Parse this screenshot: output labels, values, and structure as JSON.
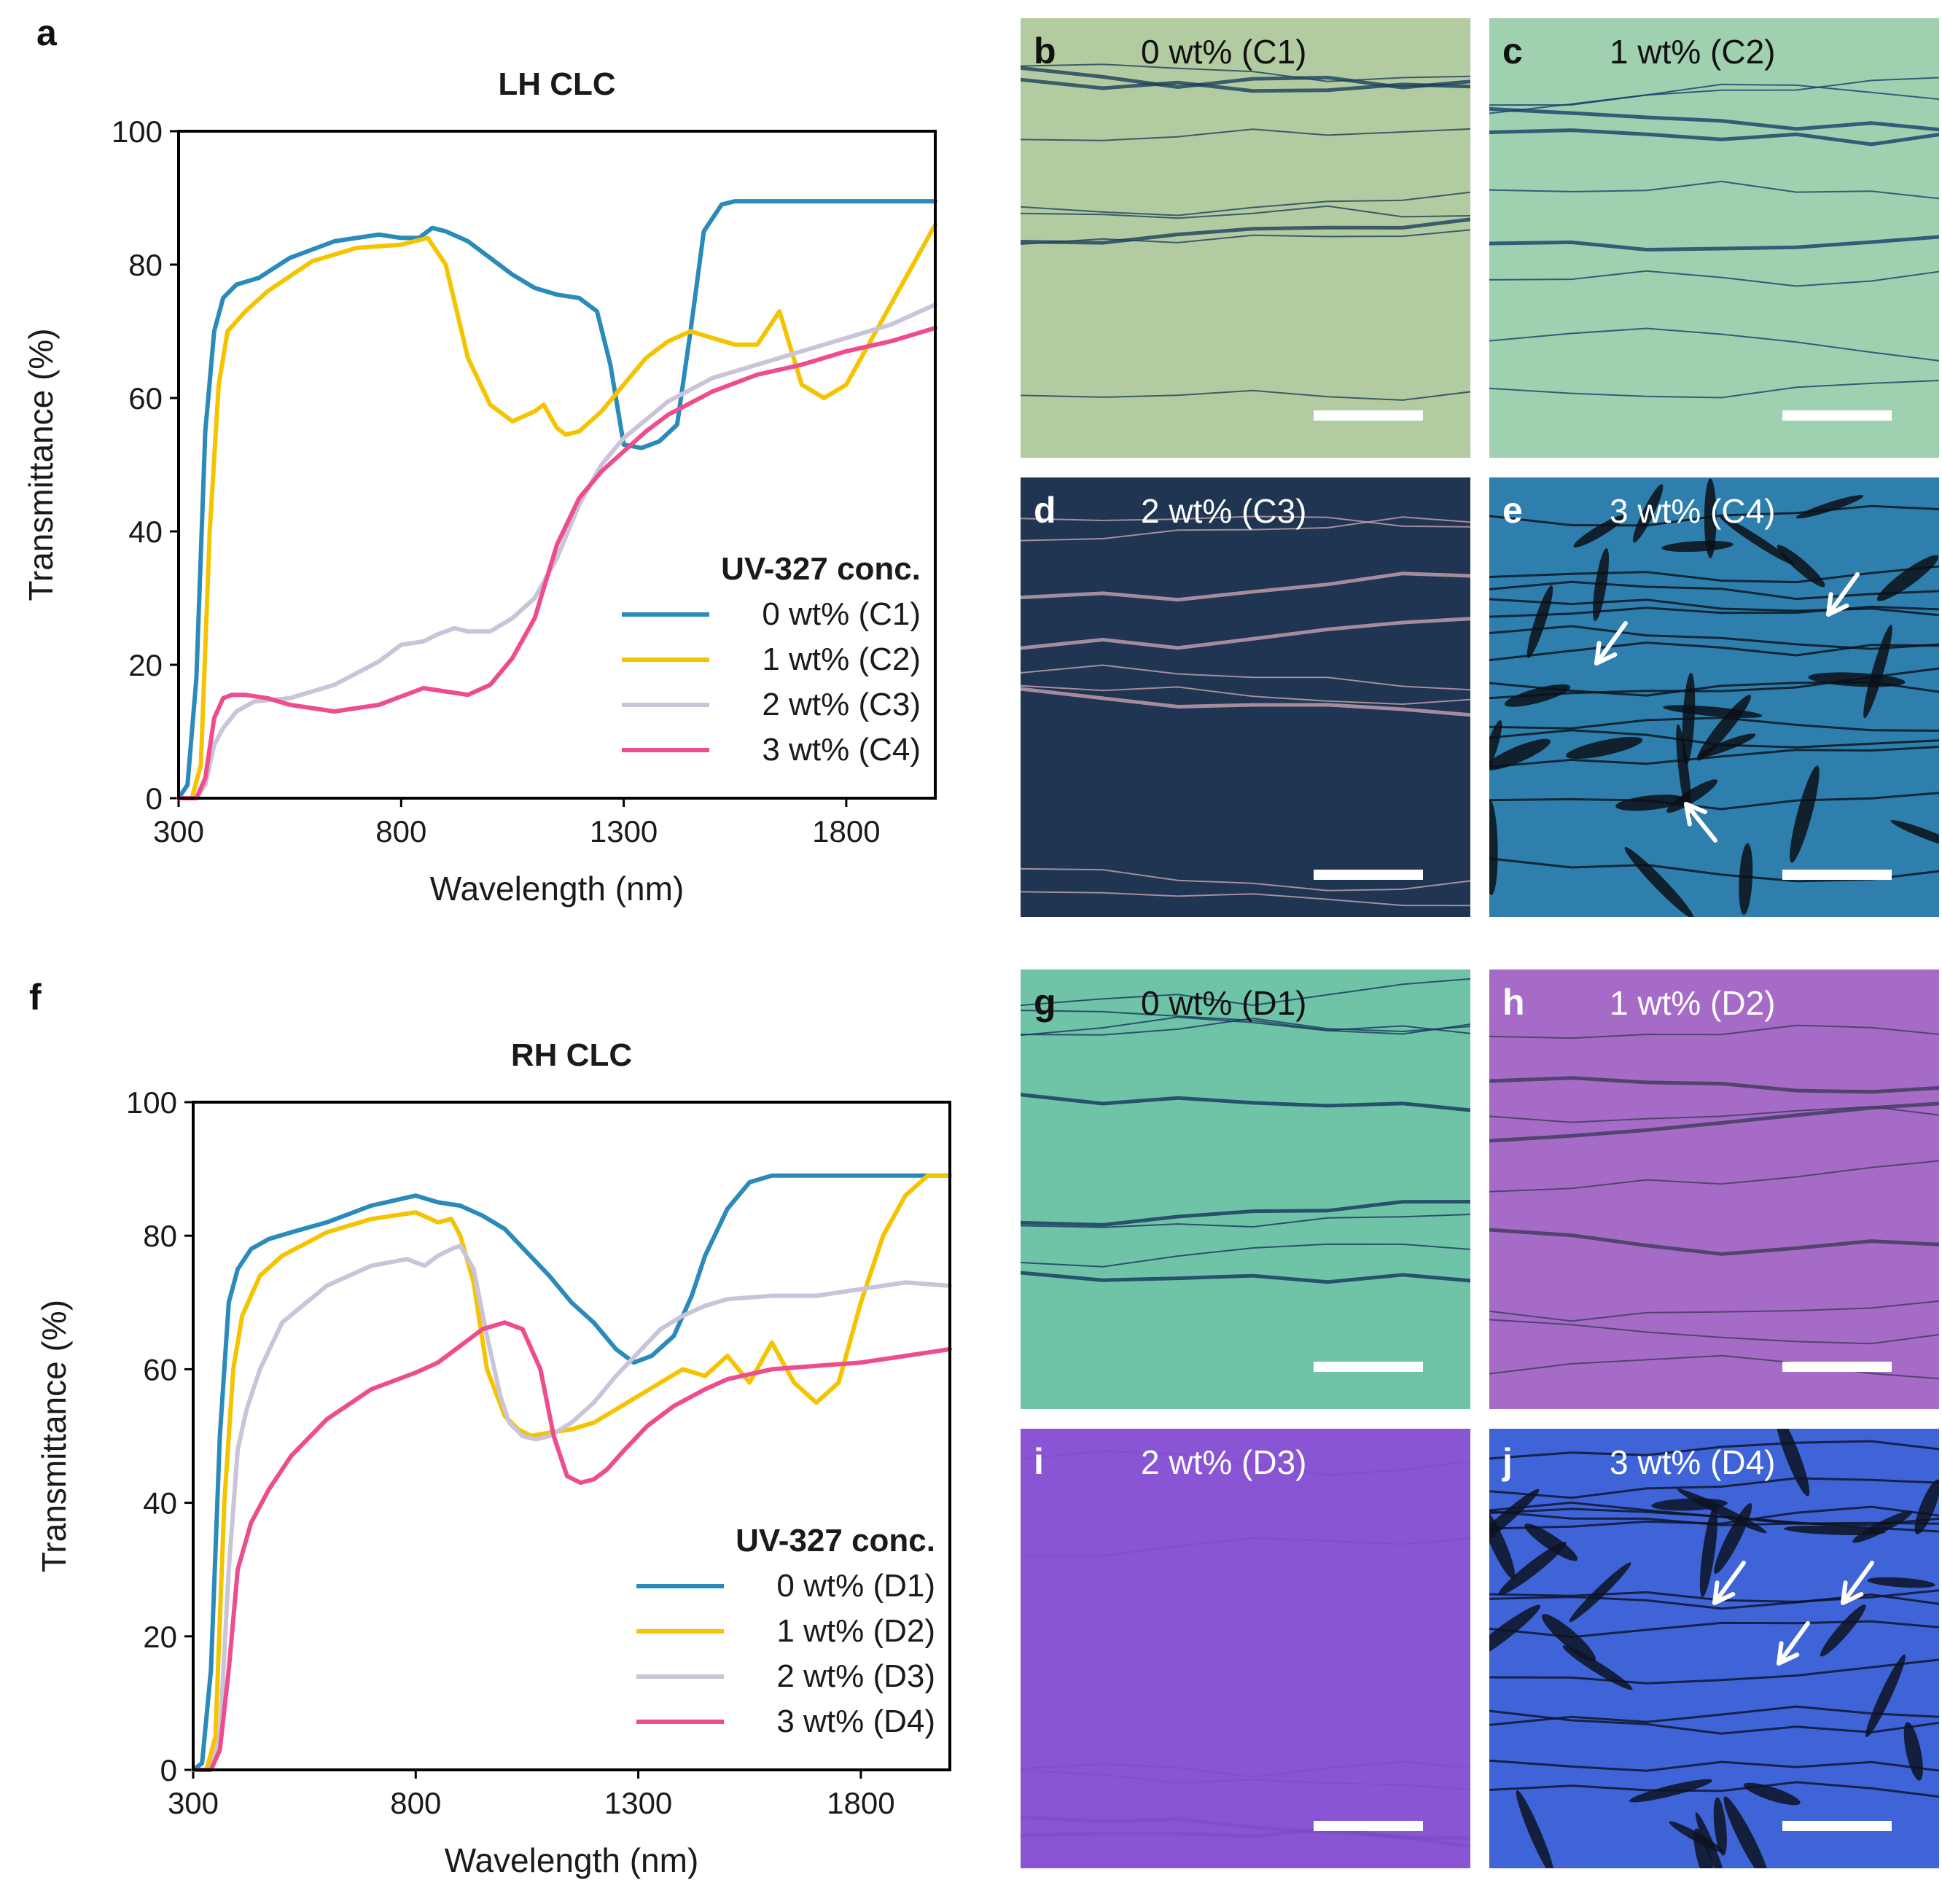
{
  "panel_labels": {
    "a": "a",
    "f": "f"
  },
  "chart_data": [
    {
      "type": "line",
      "title": "LH CLC",
      "xlabel": "Wavelength (nm)",
      "ylabel": "Transmittance (%)",
      "xlim": [
        300,
        2000
      ],
      "ylim": [
        0,
        100
      ],
      "xticks": [
        "300",
        "800",
        "1300",
        "1800"
      ],
      "yticks": [
        "0",
        "20",
        "40",
        "60",
        "80",
        "100"
      ],
      "legend_title": "UV-327 conc.",
      "legend_position": "lower-right",
      "series": [
        {
          "name": "0 wt% (C1)",
          "color": "#2a8ab9",
          "x": [
            300,
            320,
            340,
            360,
            380,
            400,
            430,
            480,
            550,
            650,
            750,
            800,
            840,
            870,
            900,
            950,
            1000,
            1050,
            1100,
            1150,
            1200,
            1240,
            1270,
            1300,
            1340,
            1380,
            1420,
            1450,
            1480,
            1520,
            1550,
            1600,
            1700,
            1800,
            1900,
            2000
          ],
          "y": [
            0,
            2,
            18,
            55,
            70,
            75,
            77,
            78,
            81,
            83.5,
            84.5,
            84,
            84,
            85.5,
            85,
            83.5,
            81,
            78.5,
            76.5,
            75.5,
            75,
            73,
            65,
            53,
            52.5,
            53.5,
            56,
            70,
            85,
            89,
            89.5,
            89.5,
            89.5,
            89.5,
            89.5,
            89.5
          ]
        },
        {
          "name": "1 wt% (C2)",
          "color": "#f5c400",
          "x": [
            300,
            330,
            350,
            370,
            390,
            410,
            450,
            500,
            600,
            700,
            800,
            860,
            900,
            950,
            1000,
            1050,
            1100,
            1120,
            1150,
            1170,
            1200,
            1250,
            1300,
            1350,
            1400,
            1450,
            1500,
            1550,
            1600,
            1650,
            1700,
            1750,
            1800,
            1850,
            1900,
            1950,
            2000
          ],
          "y": [
            0,
            0,
            5,
            40,
            62,
            70,
            73,
            76,
            80.5,
            82.5,
            83,
            84,
            80,
            66,
            59,
            56.5,
            58,
            59,
            55.5,
            54.5,
            55,
            58,
            62,
            66,
            68.5,
            70,
            69,
            68,
            68,
            73,
            62,
            60,
            62,
            68,
            74,
            80,
            86
          ]
        },
        {
          "name": "2 wt% (C3)",
          "color": "#c9c4d9",
          "x": [
            300,
            340,
            360,
            380,
            400,
            430,
            470,
            550,
            650,
            750,
            800,
            850,
            880,
            920,
            950,
            1000,
            1050,
            1100,
            1150,
            1200,
            1250,
            1300,
            1400,
            1500,
            1600,
            1700,
            1800,
            1900,
            2000
          ],
          "y": [
            0,
            0,
            2,
            8,
            10.5,
            13,
            14.5,
            15,
            17,
            20.5,
            23,
            23.5,
            24.5,
            25.5,
            25,
            25,
            27,
            30,
            36,
            44,
            50,
            54,
            59.5,
            63,
            65,
            67,
            69,
            71,
            74
          ]
        },
        {
          "name": "3 wt% (C4)",
          "color": "#ee4d8d",
          "x": [
            300,
            340,
            360,
            380,
            400,
            420,
            450,
            500,
            550,
            650,
            750,
            850,
            900,
            950,
            1000,
            1050,
            1100,
            1150,
            1200,
            1250,
            1300,
            1350,
            1400,
            1500,
            1600,
            1700,
            1800,
            1900,
            2000
          ],
          "y": [
            0,
            0,
            3,
            12,
            15,
            15.5,
            15.5,
            15,
            14,
            13,
            14,
            16.5,
            16,
            15.5,
            17,
            21,
            27,
            38,
            45,
            49,
            52,
            55,
            57.5,
            61,
            63.5,
            65,
            67,
            68.5,
            70.5
          ]
        }
      ]
    },
    {
      "type": "line",
      "title": "RH CLC",
      "xlabel": "Wavelength (nm)",
      "ylabel": "Transmittance (%)",
      "xlim": [
        300,
        2000
      ],
      "ylim": [
        0,
        100
      ],
      "xticks": [
        "300",
        "800",
        "1300",
        "1800"
      ],
      "yticks": [
        "0",
        "20",
        "40",
        "60",
        "80",
        "100"
      ],
      "legend_title": "UV-327 conc.",
      "legend_position": "lower-right",
      "series": [
        {
          "name": "0 wt% (D1)",
          "color": "#2a8ab9",
          "x": [
            300,
            320,
            340,
            360,
            380,
            400,
            430,
            470,
            520,
            600,
            700,
            800,
            850,
            900,
            950,
            1000,
            1050,
            1100,
            1150,
            1200,
            1250,
            1290,
            1330,
            1380,
            1420,
            1450,
            1500,
            1550,
            1600,
            1700,
            1800,
            1900,
            2000
          ],
          "y": [
            0,
            1,
            15,
            50,
            70,
            75,
            78,
            79.5,
            80.5,
            82,
            84.5,
            86,
            85,
            84.5,
            83,
            81,
            77.5,
            74,
            70,
            67,
            63,
            61,
            62,
            65,
            71,
            77,
            84,
            88,
            89,
            89,
            89,
            89,
            89
          ]
        },
        {
          "name": "1 wt% (D2)",
          "color": "#f5c400",
          "x": [
            300,
            330,
            350,
            370,
            390,
            410,
            450,
            500,
            600,
            700,
            800,
            850,
            880,
            900,
            930,
            960,
            1000,
            1030,
            1060,
            1100,
            1150,
            1200,
            1250,
            1300,
            1350,
            1400,
            1450,
            1500,
            1550,
            1600,
            1650,
            1700,
            1750,
            1800,
            1850,
            1900,
            1950,
            2000
          ],
          "y": [
            0,
            0,
            5,
            40,
            60,
            68,
            74,
            77,
            80.5,
            82.5,
            83.5,
            82,
            82.5,
            80,
            73,
            60,
            53,
            51,
            50,
            50.5,
            51,
            52,
            54,
            56,
            58,
            60,
            59,
            62,
            58,
            64,
            58,
            55,
            58,
            70,
            80,
            86,
            89,
            89
          ]
        },
        {
          "name": "2 wt% (D3)",
          "color": "#c9c4d9",
          "x": [
            300,
            340,
            360,
            380,
            400,
            420,
            450,
            500,
            600,
            700,
            780,
            820,
            850,
            880,
            900,
            930,
            960,
            990,
            1010,
            1040,
            1070,
            1100,
            1150,
            1200,
            1250,
            1300,
            1350,
            1400,
            1450,
            1500,
            1600,
            1700,
            1800,
            1900,
            2000
          ],
          "y": [
            0,
            0,
            5,
            30,
            48,
            54,
            60,
            67,
            72.5,
            75.5,
            76.5,
            75.5,
            77,
            78,
            78.5,
            75,
            65,
            56,
            52,
            50,
            49.5,
            50,
            52,
            55,
            59,
            62.5,
            66,
            68,
            69.5,
            70.5,
            71,
            71,
            72,
            73,
            72.5
          ]
        },
        {
          "name": "3 wt% (D4)",
          "color": "#ee4d8d",
          "x": [
            300,
            340,
            360,
            380,
            400,
            430,
            470,
            520,
            600,
            700,
            800,
            850,
            900,
            950,
            1000,
            1040,
            1080,
            1110,
            1140,
            1170,
            1200,
            1230,
            1270,
            1320,
            1380,
            1450,
            1500,
            1600,
            1700,
            1800,
            1900,
            2000
          ],
          "y": [
            0,
            0,
            3,
            15,
            30,
            37,
            42,
            47,
            52.5,
            57,
            59.5,
            61,
            63.5,
            66,
            67,
            66,
            60,
            50,
            44,
            43,
            43.5,
            45,
            48,
            51.5,
            54.5,
            57,
            58.5,
            60,
            60.5,
            61,
            62,
            63
          ]
        }
      ]
    }
  ],
  "micrographs": [
    {
      "label": "b",
      "caption": "0 wt% (C1)",
      "label_color": "#111111",
      "caption_color": "#111111",
      "base": "#b3cba1",
      "line": "#1c3f5c"
    },
    {
      "label": "c",
      "caption": "1 wt% (C2)",
      "label_color": "#111111",
      "caption_color": "#111111",
      "base": "#9fd0b0",
      "line": "#173f6a"
    },
    {
      "label": "d",
      "caption": "2 wt% (C3)",
      "label_color": "#ffffff",
      "caption_color": "#ffffff",
      "base": "#1f3552",
      "line": "#c7a3b0"
    },
    {
      "label": "e",
      "caption": "3 wt% (C4)",
      "label_color": "#ffffff",
      "caption_color": "#ffffff",
      "base": "#2e7fae",
      "line": "#0b0f16"
    },
    {
      "label": "g",
      "caption": "0 wt% (D1)",
      "label_color": "#111111",
      "caption_color": "#111111",
      "base": "#6fc4a8",
      "line": "#17345e"
    },
    {
      "label": "h",
      "caption": "1 wt% (D2)",
      "label_color": "#ffffff",
      "caption_color": "#ffffff",
      "base": "#a66bc7",
      "line": "#3b3b5a"
    },
    {
      "label": "i",
      "caption": "2 wt% (D3)",
      "label_color": "#ffffff",
      "caption_color": "#ffffff",
      "base": "#8a55d4",
      "line": "#6e48b8"
    },
    {
      "label": "j",
      "caption": "3 wt% (D4)",
      "label_color": "#ffffff",
      "caption_color": "#ffffff",
      "base": "#3f64d8",
      "line": "#0d1222"
    }
  ]
}
